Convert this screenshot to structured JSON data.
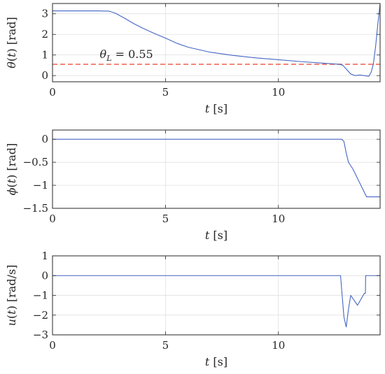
{
  "chart_data": [
    {
      "type": "line",
      "title": "",
      "xlabel": "t [s]",
      "ylabel": "θ(t) [rad]",
      "xlim": [
        0,
        14.5
      ],
      "ylim": [
        -0.3,
        3.5
      ],
      "xticks": [
        0,
        5,
        10
      ],
      "yticks": [
        0,
        1,
        2,
        3
      ],
      "ytick_labels": [
        "0",
        "1",
        "2",
        "3"
      ],
      "grid": true,
      "series": [
        {
          "color": "#4466c4",
          "x": [
            0,
            1,
            2,
            2.5,
            2.8,
            3.2,
            3.6,
            4.0,
            4.5,
            5.0,
            5.5,
            6.0,
            7.0,
            8.0,
            9.0,
            10.0,
            11.0,
            12.0,
            12.7,
            12.85,
            13.0,
            13.2,
            13.4,
            13.6,
            13.8,
            14.0,
            14.1,
            14.2,
            14.3,
            14.4,
            14.5
          ],
          "y": [
            3.14,
            3.14,
            3.14,
            3.13,
            3.02,
            2.78,
            2.52,
            2.3,
            2.05,
            1.82,
            1.57,
            1.38,
            1.13,
            0.98,
            0.86,
            0.77,
            0.68,
            0.6,
            0.55,
            0.5,
            0.32,
            0.08,
            0.0,
            0.03,
            0.0,
            -0.03,
            0.15,
            0.55,
            1.4,
            2.5,
            3.5
          ]
        }
      ],
      "reference": {
        "y": 0.55,
        "color": "#f06a5a",
        "label_symbol": "θ",
        "label_sub": "L",
        "label_value": " = 0.55",
        "label_x": 2.0,
        "label_y": 0.85
      }
    },
    {
      "type": "line",
      "title": "",
      "xlabel": "t [s]",
      "ylabel": "ϕ(t) [rad]",
      "xlim": [
        0,
        14.5
      ],
      "ylim": [
        -1.5,
        0.2
      ],
      "xticks": [
        0,
        5,
        10
      ],
      "yticks": [
        0,
        -0.5,
        -1,
        -1.5
      ],
      "ytick_labels": [
        "0",
        "−0.5",
        "−1",
        "−1.5"
      ],
      "grid": true,
      "series": [
        {
          "color": "#4466c4",
          "x": [
            0,
            12.8,
            12.9,
            13.0,
            13.1,
            13.3,
            13.5,
            13.7,
            13.9,
            14.0,
            14.5
          ],
          "y": [
            0,
            0,
            -0.05,
            -0.3,
            -0.5,
            -0.65,
            -0.85,
            -1.05,
            -1.25,
            -1.25,
            -1.25
          ]
        }
      ]
    },
    {
      "type": "line",
      "title": "",
      "xlabel": "t [s]",
      "ylabel": "u(t) [rad/s]",
      "xlim": [
        0,
        14.5
      ],
      "ylim": [
        -3,
        1
      ],
      "xticks": [
        0,
        5,
        10
      ],
      "yticks": [
        1,
        0,
        -1,
        -2,
        -3
      ],
      "ytick_labels": [
        "1",
        "0",
        "−1",
        "−2",
        "−3"
      ],
      "grid": true,
      "series": [
        {
          "color": "#4466c4",
          "x": [
            0,
            12.75,
            12.82,
            12.9,
            13.0,
            13.1,
            13.2,
            13.35,
            13.5,
            13.65,
            13.8,
            13.85,
            13.86,
            14.5
          ],
          "y": [
            0,
            0,
            -1.0,
            -2.1,
            -2.6,
            -1.7,
            -1.0,
            -1.25,
            -1.5,
            -1.2,
            -0.9,
            -0.9,
            0,
            0
          ]
        }
      ]
    }
  ]
}
